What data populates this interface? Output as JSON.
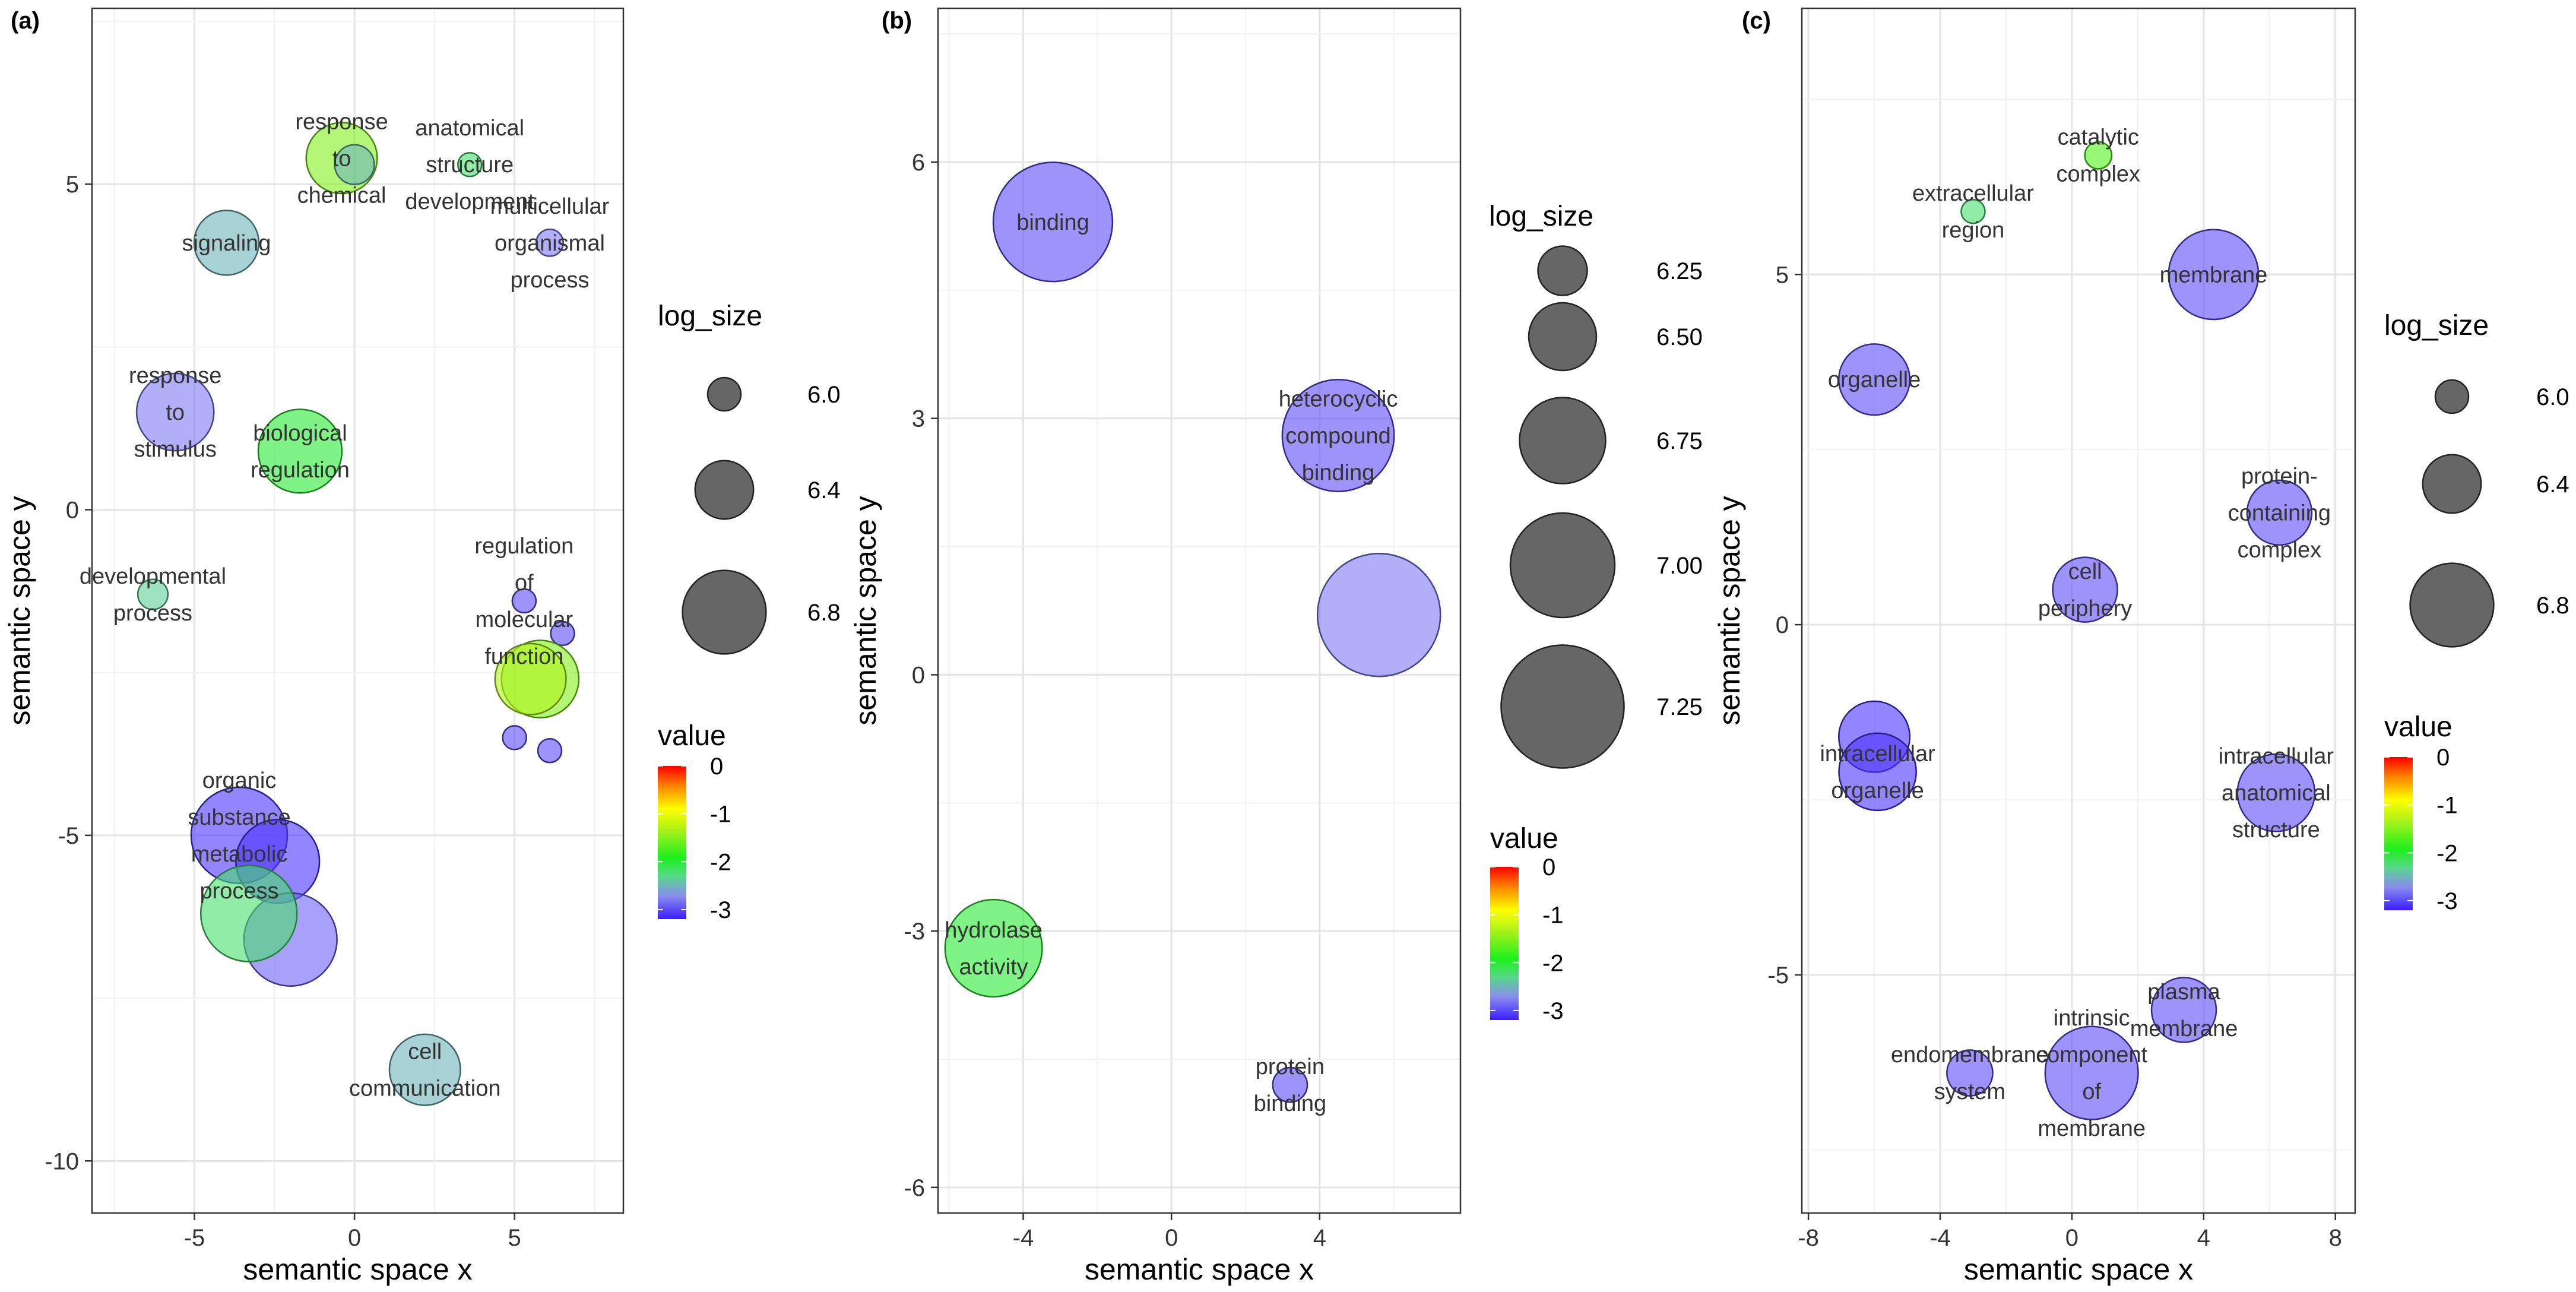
{
  "chart_data": [
    {
      "type": "scatter",
      "panel_label": "(a)",
      "xlabel": "semantic space x",
      "ylabel": "semantic space y",
      "xlim": [
        -8.2,
        8.4
      ],
      "ylim": [
        -10.8,
        7.7
      ],
      "xticks": [
        -5,
        0,
        5
      ],
      "yticks": [
        -10,
        -5,
        0,
        5
      ],
      "xtick_labels": [
        "-5",
        "0",
        "5"
      ],
      "ytick_labels": [
        "-10",
        "-5",
        "0",
        "5"
      ],
      "size_legend": {
        "title": "log_size",
        "items": [
          {
            "value": 6.0,
            "label": "6.0"
          },
          {
            "value": 6.4,
            "label": "6.4"
          },
          {
            "value": 6.8,
            "label": "6.8"
          }
        ]
      },
      "color_legend": {
        "title": "value",
        "ticks": [
          "0",
          "-1",
          "-2",
          "-3"
        ],
        "range": [
          -3.2,
          0
        ]
      },
      "points": [
        {
          "x": -0.4,
          "y": 5.4,
          "log_size": 6.6,
          "value": -1.5,
          "label": [
            "response",
            "to",
            "chemical"
          ]
        },
        {
          "x": 0.0,
          "y": 5.3,
          "log_size": 6.1,
          "value": -2.5,
          "label": []
        },
        {
          "x": 3.6,
          "y": 5.3,
          "log_size": 5.8,
          "value": -2.2,
          "label": [
            "anatomical",
            "structure",
            "development"
          ]
        },
        {
          "x": 6.1,
          "y": 4.1,
          "log_size": 5.9,
          "value": -2.8,
          "label": [
            "multicellular",
            "organismal",
            "process"
          ]
        },
        {
          "x": -4.0,
          "y": 4.1,
          "log_size": 6.5,
          "value": -2.5,
          "label": [
            "signaling"
          ]
        },
        {
          "x": -5.6,
          "y": 1.5,
          "log_size": 6.7,
          "value": -2.8,
          "label": [
            "response",
            "to",
            "stimulus"
          ]
        },
        {
          "x": -1.7,
          "y": 0.9,
          "log_size": 6.8,
          "value": -2.0,
          "label": [
            "biological",
            "regulation"
          ]
        },
        {
          "x": -6.3,
          "y": -1.3,
          "log_size": 5.95,
          "value": -2.35,
          "label": [
            "developmental",
            "process"
          ]
        },
        {
          "x": 5.3,
          "y": -1.4,
          "log_size": 5.7,
          "value": -3.0,
          "label": [
            "regulation",
            "of",
            "molecular",
            "function"
          ]
        },
        {
          "x": 6.5,
          "y": -1.9,
          "log_size": 5.8,
          "value": -3.0,
          "label": []
        },
        {
          "x": 5.8,
          "y": -2.6,
          "log_size": 6.7,
          "value": -1.5,
          "label": []
        },
        {
          "x": 5.5,
          "y": -2.6,
          "log_size": 6.6,
          "value": -1.3,
          "label": []
        },
        {
          "x": 5.0,
          "y": -3.5,
          "log_size": 5.5,
          "value": -3.0,
          "label": []
        },
        {
          "x": 6.1,
          "y": -3.7,
          "log_size": 5.8,
          "value": -3.0,
          "label": []
        },
        {
          "x": -3.6,
          "y": -5.0,
          "log_size": 7.0,
          "value": -3.1,
          "label": [
            "organic",
            "substance",
            "metabolic",
            "process"
          ]
        },
        {
          "x": -2.4,
          "y": -5.4,
          "log_size": 6.8,
          "value": -3.1,
          "label": []
        },
        {
          "x": -2.0,
          "y": -6.6,
          "log_size": 6.95,
          "value": -2.9,
          "label": []
        },
        {
          "x": -3.3,
          "y": -6.2,
          "log_size": 7.0,
          "value": -2.2,
          "label": []
        },
        {
          "x": 2.2,
          "y": -8.6,
          "log_size": 6.6,
          "value": -2.5,
          "label": [
            "cell",
            "communication"
          ]
        }
      ]
    },
    {
      "type": "scatter",
      "panel_label": "(b)",
      "xlabel": "semantic space x",
      "ylabel": "semantic space y",
      "xlim": [
        -6.3,
        7.8
      ],
      "ylim": [
        -6.3,
        7.8
      ],
      "xticks": [
        -4,
        0,
        4
      ],
      "yticks": [
        -6,
        -3,
        0,
        3,
        6
      ],
      "xtick_labels": [
        "-4",
        "0",
        "4"
      ],
      "ytick_labels": [
        "-6",
        "-3",
        "0",
        "3",
        "6"
      ],
      "size_legend": {
        "title": "log_size",
        "items": [
          {
            "value": 6.25,
            "label": "6.25"
          },
          {
            "value": 6.5,
            "label": "6.50"
          },
          {
            "value": 6.75,
            "label": "6.75"
          },
          {
            "value": 7.0,
            "label": "7.00"
          },
          {
            "value": 7.25,
            "label": "7.25"
          }
        ]
      },
      "color_legend": {
        "title": "value",
        "ticks": [
          "0",
          "-1",
          "-2",
          "-3"
        ],
        "range": [
          -3.2,
          0
        ]
      },
      "points": [
        {
          "x": -3.2,
          "y": 5.3,
          "log_size": 7.2,
          "value": -3.0,
          "label": [
            "binding"
          ]
        },
        {
          "x": 4.5,
          "y": 2.8,
          "log_size": 7.1,
          "value": -3.0,
          "label": [
            "heterocyclic",
            "compound",
            "binding"
          ]
        },
        {
          "x": 5.6,
          "y": 0.7,
          "log_size": 7.25,
          "value": -2.8,
          "label": []
        },
        {
          "x": -4.8,
          "y": -3.2,
          "log_size": 6.9,
          "value": -2.0,
          "label": [
            "hydrolase",
            "activity"
          ]
        },
        {
          "x": 3.2,
          "y": -4.8,
          "log_size": 6.05,
          "value": -3.0,
          "label": [
            "protein",
            "binding"
          ]
        }
      ]
    },
    {
      "type": "scatter",
      "panel_label": "(c)",
      "xlabel": "semantic space x",
      "ylabel": "semantic space y",
      "xlim": [
        -8.2,
        8.6
      ],
      "ylim": [
        -8.4,
        8.8
      ],
      "xticks": [
        -8,
        -4,
        0,
        4,
        8
      ],
      "yticks": [
        -5,
        0,
        5
      ],
      "xtick_labels": [
        "-8",
        "-4",
        "0",
        "4",
        "8"
      ],
      "ytick_labels": [
        "-5",
        "0",
        "5"
      ],
      "size_legend": {
        "title": "log_size",
        "items": [
          {
            "value": 6.0,
            "label": "6.0"
          },
          {
            "value": 6.4,
            "label": "6.4"
          },
          {
            "value": 6.8,
            "label": "6.8"
          }
        ]
      },
      "color_legend": {
        "title": "value",
        "ticks": [
          "0",
          "-1",
          "-2",
          "-3"
        ],
        "range": [
          -3.2,
          0
        ]
      },
      "points": [
        {
          "x": 0.8,
          "y": 6.7,
          "log_size": 5.9,
          "value": -1.7,
          "label": [
            "catalytic",
            "complex"
          ]
        },
        {
          "x": -3.0,
          "y": 5.9,
          "log_size": 5.5,
          "value": -2.2,
          "label": [
            "extracellular",
            "region"
          ]
        },
        {
          "x": 4.3,
          "y": 5.0,
          "log_size": 6.9,
          "value": -3.0,
          "label": [
            "membrane"
          ]
        },
        {
          "x": -6.0,
          "y": 3.5,
          "log_size": 6.6,
          "value": -3.0,
          "label": [
            "organelle"
          ]
        },
        {
          "x": 6.3,
          "y": 1.6,
          "log_size": 6.5,
          "value": -3.0,
          "label": [
            "protein-",
            "containing",
            "complex"
          ]
        },
        {
          "x": 0.4,
          "y": 0.5,
          "log_size": 6.5,
          "value": -3.0,
          "label": [
            "cell",
            "periphery"
          ]
        },
        {
          "x": -6.0,
          "y": -1.6,
          "log_size": 6.6,
          "value": -3.1,
          "label": []
        },
        {
          "x": -5.9,
          "y": -2.1,
          "log_size": 6.7,
          "value": -3.1,
          "label": [
            "intracellular",
            "organelle"
          ]
        },
        {
          "x": 6.2,
          "y": -2.4,
          "log_size": 6.7,
          "value": -3.0,
          "label": [
            "intracellular",
            "anatomical",
            "structure"
          ]
        },
        {
          "x": 3.4,
          "y": -5.5,
          "log_size": 6.5,
          "value": -3.0,
          "label": [
            "plasma",
            "membrane"
          ]
        },
        {
          "x": -3.1,
          "y": -6.4,
          "log_size": 6.2,
          "value": -3.0,
          "label": [
            "endomembrane",
            "system"
          ]
        },
        {
          "x": 0.6,
          "y": -6.4,
          "log_size": 6.95,
          "value": -3.0,
          "label": [
            "intrinsic",
            "component",
            "of",
            "membrane"
          ]
        }
      ]
    }
  ]
}
